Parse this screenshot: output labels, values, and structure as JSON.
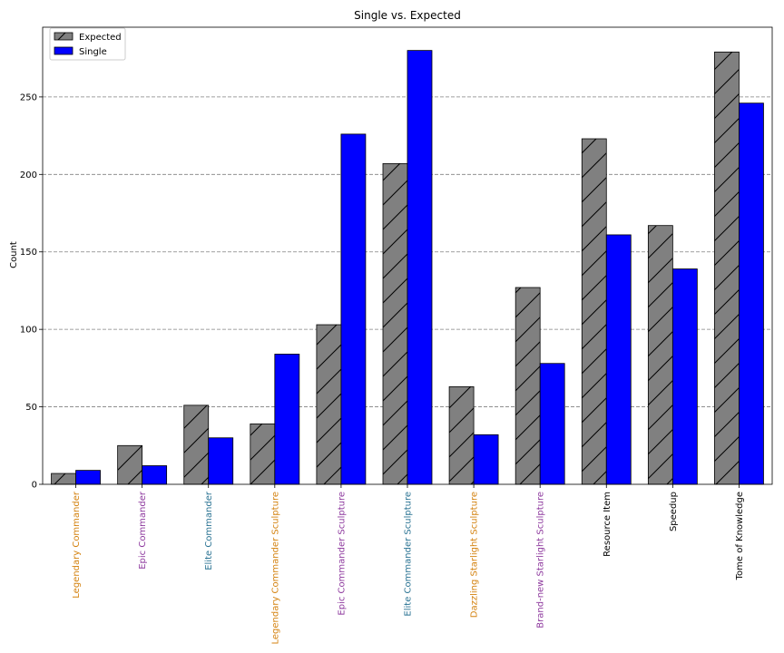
{
  "chart_data": {
    "type": "bar",
    "title": "Single vs. Expected",
    "xlabel": "",
    "ylabel": "Count",
    "ylim": [
      0,
      295
    ],
    "yticks": [
      0,
      50,
      100,
      150,
      200,
      250
    ],
    "grid": "horizontal dashed",
    "legend_position": "top-left",
    "categories": [
      "Legendary Commander",
      "Epic Commander",
      "Elite Commander",
      "Legendary Commander Sculpture",
      "Epic Commander Sculpture",
      "Elite Commander Sculpture",
      "Dazzling Starlight Sculpture",
      "Brand-new Starlight Sculpture",
      "Resource Item",
      "Speedup",
      "Tome of Knowledge"
    ],
    "category_colors": [
      "#d4820f",
      "#8e3a9e",
      "#2a7393",
      "#d4820f",
      "#8e3a9e",
      "#2a7393",
      "#d4820f",
      "#8e3a9e",
      "#000000",
      "#000000",
      "#000000"
    ],
    "series": [
      {
        "name": "Expected",
        "color": "#808080",
        "hatch": "diagonal",
        "values": [
          7,
          25,
          51,
          39,
          103,
          207,
          63,
          127,
          223,
          167,
          279
        ]
      },
      {
        "name": "Single",
        "color": "#0000ff",
        "hatch": "none",
        "values": [
          9,
          12,
          30,
          84,
          226,
          280,
          32,
          78,
          161,
          139,
          246
        ]
      }
    ]
  }
}
